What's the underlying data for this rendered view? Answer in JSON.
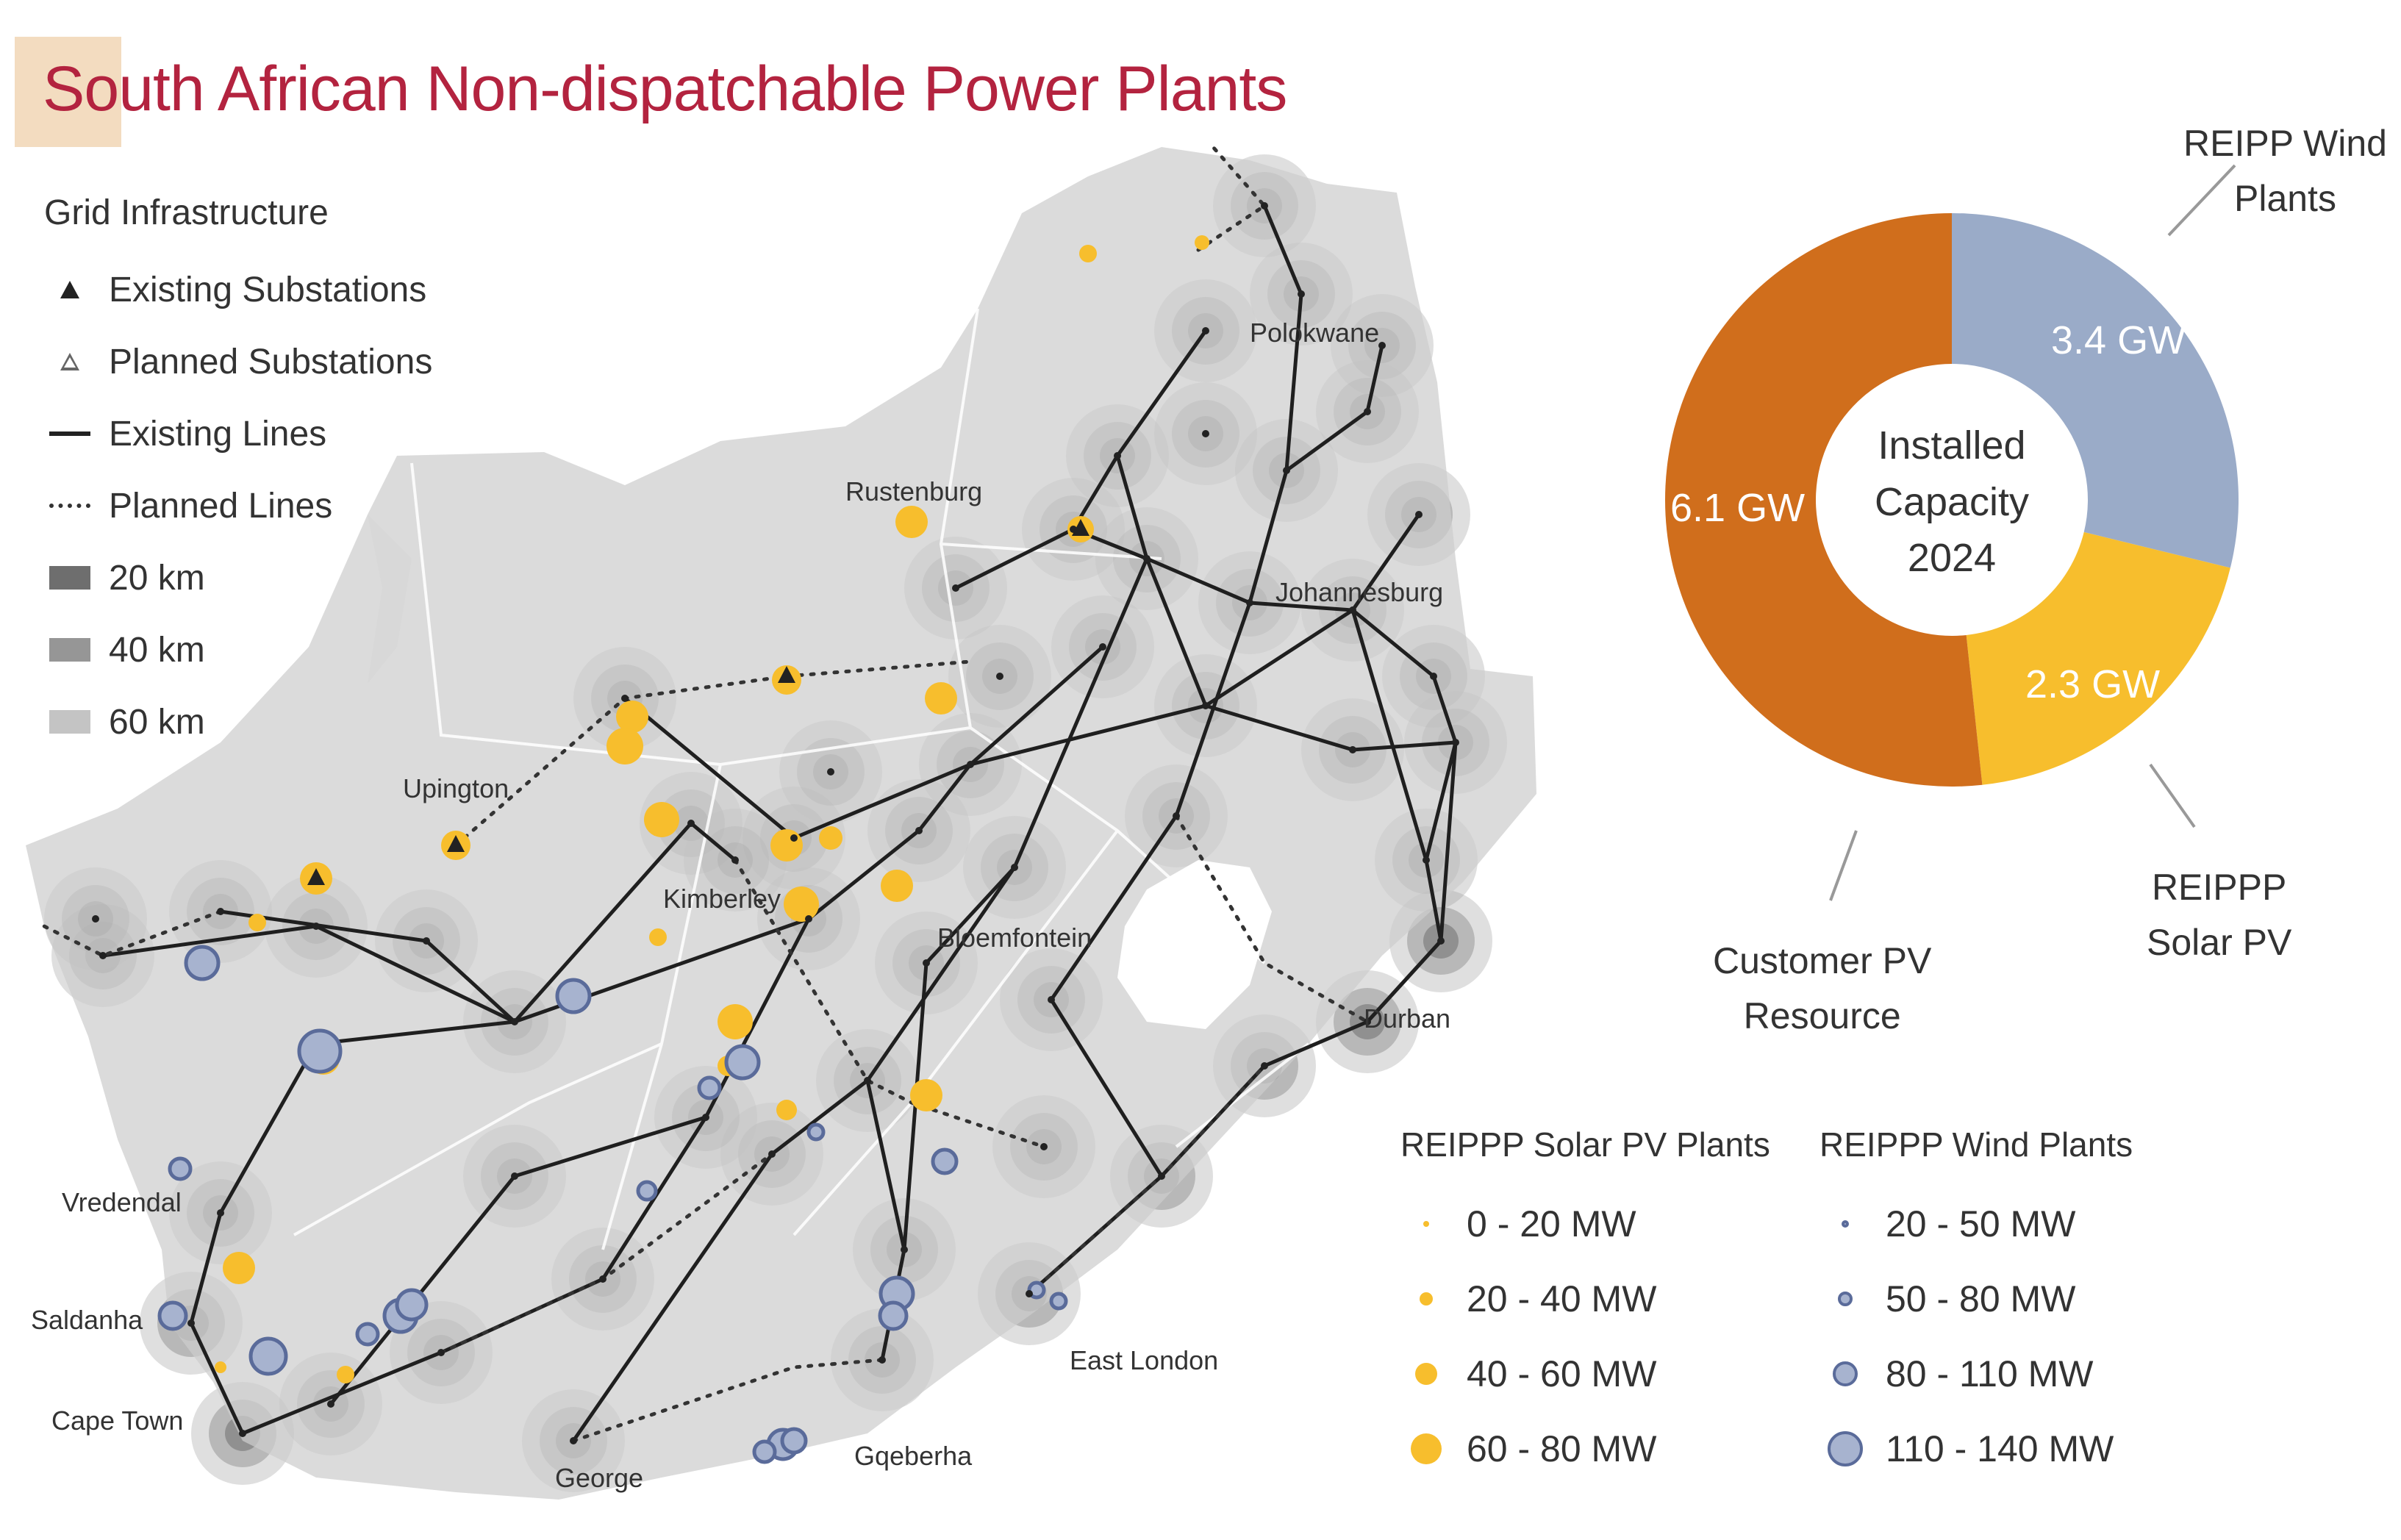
{
  "title": "South African Non-dispatchable Power Plants",
  "grid_legend": {
    "title": "Grid Infrastructure",
    "items": [
      {
        "label": "Existing Substations",
        "icon": "filled-triangle-icon"
      },
      {
        "label": "Planned Substations",
        "icon": "hollow-triangle-icon"
      },
      {
        "label": "Existing Lines",
        "icon": "solid-line-icon"
      },
      {
        "label": "Planned Lines",
        "icon": "dotted-line-icon"
      },
      {
        "label": "20 km",
        "color": "#6e6e6e"
      },
      {
        "label": "40 km",
        "color": "#969696"
      },
      {
        "label": "60 km",
        "color": "#c4c4c4"
      }
    ]
  },
  "cities": [
    "Polokwane",
    "Rustenburg",
    "Johannesburg",
    "Upington",
    "Kimberley",
    "Bloemfontein",
    "Durban",
    "Vredendal",
    "Saldanha",
    "Cape Town",
    "George",
    "Gqeberha",
    "East London"
  ],
  "installed_capacity": {
    "center_label": [
      "Installed",
      "Capacity",
      "2024"
    ],
    "segments": [
      {
        "label": "REIPP Wind Plants",
        "label_lines": [
          "REIPP Wind",
          "Plants"
        ],
        "value_label": "3.4 GW",
        "value": 3.4,
        "color": "#9aabc8"
      },
      {
        "label": "REIPPP Solar PV",
        "label_lines": [
          "REIPPP",
          "Solar PV"
        ],
        "value_label": "2.3 GW",
        "value": 2.3,
        "color": "#f7be2d"
      },
      {
        "label": "Customer PV Resource",
        "label_lines": [
          "Customer PV",
          "Resource"
        ],
        "value_label": "6.1 GW",
        "value": 6.1,
        "color": "#d06e1c"
      }
    ]
  },
  "solar_legend": {
    "title": "REIPPP Solar PV Plants",
    "color": "#f7be2d",
    "items": [
      "0 - 20 MW",
      "20 - 40 MW",
      "40 - 60 MW",
      "60 - 80 MW"
    ]
  },
  "wind_legend": {
    "title": "REIPPP Wind Plants",
    "fill": "#a7b3cf",
    "stroke": "#5a6b9a",
    "items": [
      "20 - 50 MW",
      "50 - 80 MW",
      "80 - 110 MW",
      "110 - 140 MW"
    ]
  }
}
